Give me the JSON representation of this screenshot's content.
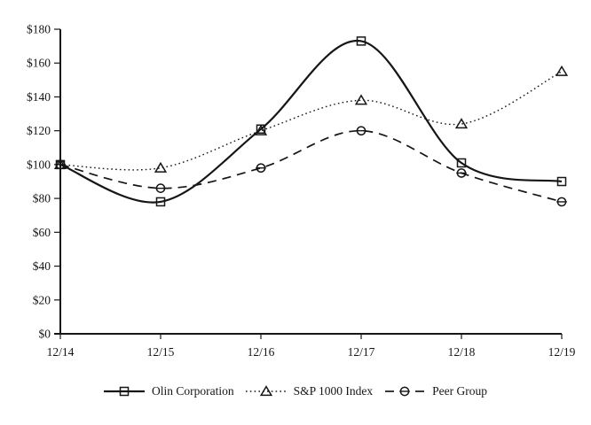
{
  "chart_data": {
    "type": "line",
    "title": "",
    "categories": [
      "12/14",
      "12/15",
      "12/16",
      "12/17",
      "12/18",
      "12/19"
    ],
    "series": [
      {
        "name": "Olin Corporation",
        "values": [
          100,
          78,
          121,
          173,
          101,
          90
        ],
        "line_style": "solid",
        "marker": "square",
        "color": "#161616"
      },
      {
        "name": "S&P 1000 Index",
        "values": [
          100,
          98,
          120,
          138,
          124,
          155
        ],
        "line_style": "dotted",
        "marker": "triangle",
        "color": "#161616"
      },
      {
        "name": "Peer Group",
        "values": [
          100,
          86,
          98,
          120,
          95,
          78
        ],
        "line_style": "dashed",
        "marker": "circle-line",
        "color": "#161616"
      }
    ],
    "xlabel": "",
    "ylabel": "",
    "ylim": [
      0,
      180
    ],
    "ytick_interval": 20,
    "ytick_labels": [
      "$0",
      "$20",
      "$40",
      "$60",
      "$80",
      "$100",
      "$120",
      "$140",
      "$160",
      "$180"
    ],
    "grid": false,
    "legend_position": "bottom",
    "smooth_lines": true,
    "axis_color": "#161616",
    "background": "#ffffff"
  }
}
